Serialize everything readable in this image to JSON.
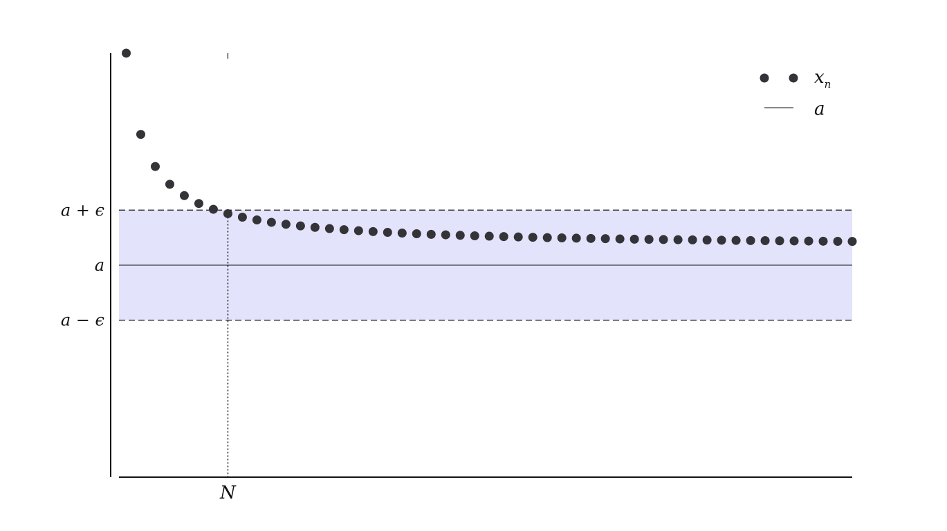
{
  "chart_data": {
    "type": "scatter",
    "series": [
      {
        "name": "x_n",
        "kind": "points",
        "x": [
          1,
          2,
          3,
          4,
          5,
          6,
          7,
          8,
          9,
          10,
          11,
          12,
          13,
          14,
          15,
          16,
          17,
          18,
          19,
          20,
          21,
          22,
          23,
          24,
          25,
          26,
          27,
          28,
          29,
          30,
          31,
          32,
          33,
          34,
          35,
          36,
          37,
          38,
          39,
          40,
          41,
          42,
          43,
          44,
          45,
          46,
          47,
          48,
          49,
          50,
          51
        ],
        "values": [
          3.85,
          2.375,
          1.792,
          1.469,
          1.263,
          1.12,
          1.015,
          0.935,
          0.872,
          0.821,
          0.778,
          0.743,
          0.713,
          0.687,
          0.664,
          0.644,
          0.626,
          0.61,
          0.596,
          0.583,
          0.571,
          0.56,
          0.551,
          0.542,
          0.533,
          0.526,
          0.519,
          0.512,
          0.506,
          0.5,
          0.495,
          0.49,
          0.485,
          0.481,
          0.476,
          0.472,
          0.469,
          0.465,
          0.462,
          0.459,
          0.456,
          0.453,
          0.45,
          0.447,
          0.445,
          0.442,
          0.44,
          0.438,
          0.435,
          0.433,
          0.431
        ]
      },
      {
        "name": "a",
        "kind": "line",
        "value": 0
      }
    ],
    "band": {
      "lower": -1,
      "upper": 1,
      "color": "#e3e3fb"
    },
    "N": 8,
    "xlim": [
      0.5,
      51
    ],
    "ylim": [
      -3.85,
      3.85
    ],
    "y_ticks": [
      {
        "value": 1,
        "label_base": "a + ",
        "label_greek": "ϵ"
      },
      {
        "value": 0,
        "label_base": "a",
        "label_greek": ""
      },
      {
        "value": -1,
        "label_base": "a − ",
        "label_greek": "ϵ"
      }
    ],
    "x_tick_label": "N",
    "legend": {
      "placement": "top-right",
      "points_label": "x",
      "points_subscript": "n",
      "line_label": "a"
    },
    "colors": {
      "points": "#333338",
      "axis": "#111111"
    }
  }
}
